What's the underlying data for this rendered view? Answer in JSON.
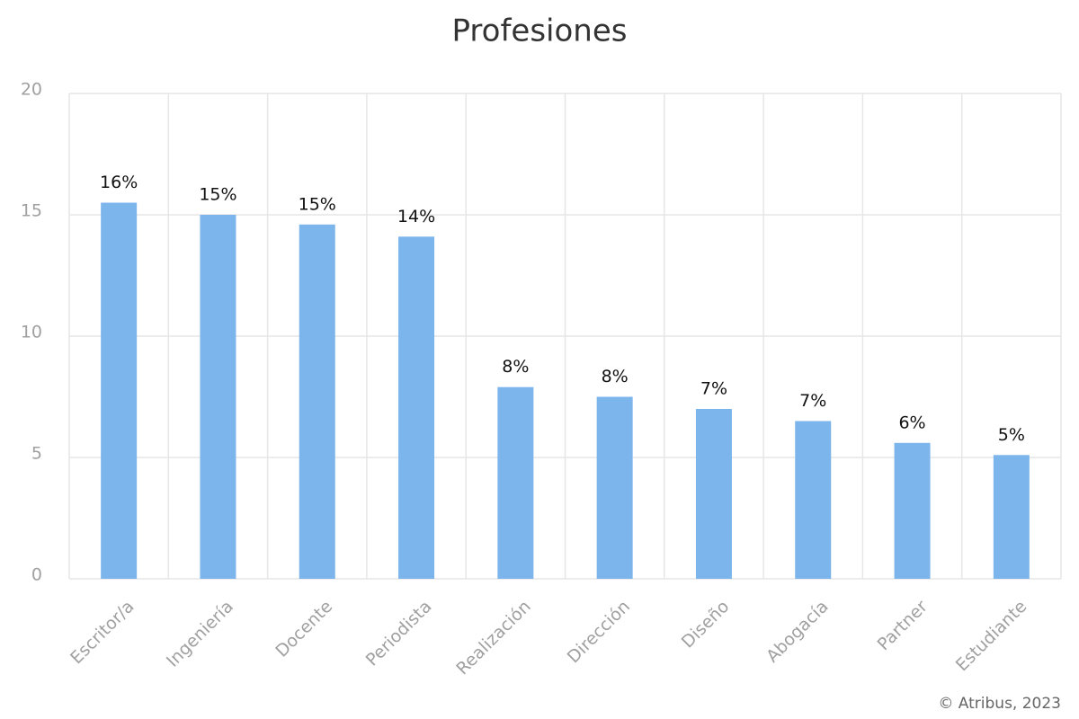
{
  "chart_data": {
    "type": "bar",
    "title": "Profesiones",
    "categories": [
      "Escritor/a",
      "Ingeniería",
      "Docente",
      "Periodista",
      "Realización",
      "Dirección",
      "Diseño",
      "Abogacía",
      "Partner",
      "Estudiante"
    ],
    "values": [
      15.5,
      15.0,
      14.6,
      14.1,
      7.9,
      7.5,
      7.0,
      6.5,
      5.6,
      5.1
    ],
    "value_labels": [
      "16%",
      "15%",
      "15%",
      "14%",
      "8%",
      "8%",
      "7%",
      "7%",
      "6%",
      "5%"
    ],
    "color": "#7cb5ec",
    "ylim": [
      0,
      20
    ],
    "yticks": [
      0,
      5,
      10,
      15,
      20
    ],
    "grid": true,
    "credit": "© Atribus, 2023"
  }
}
